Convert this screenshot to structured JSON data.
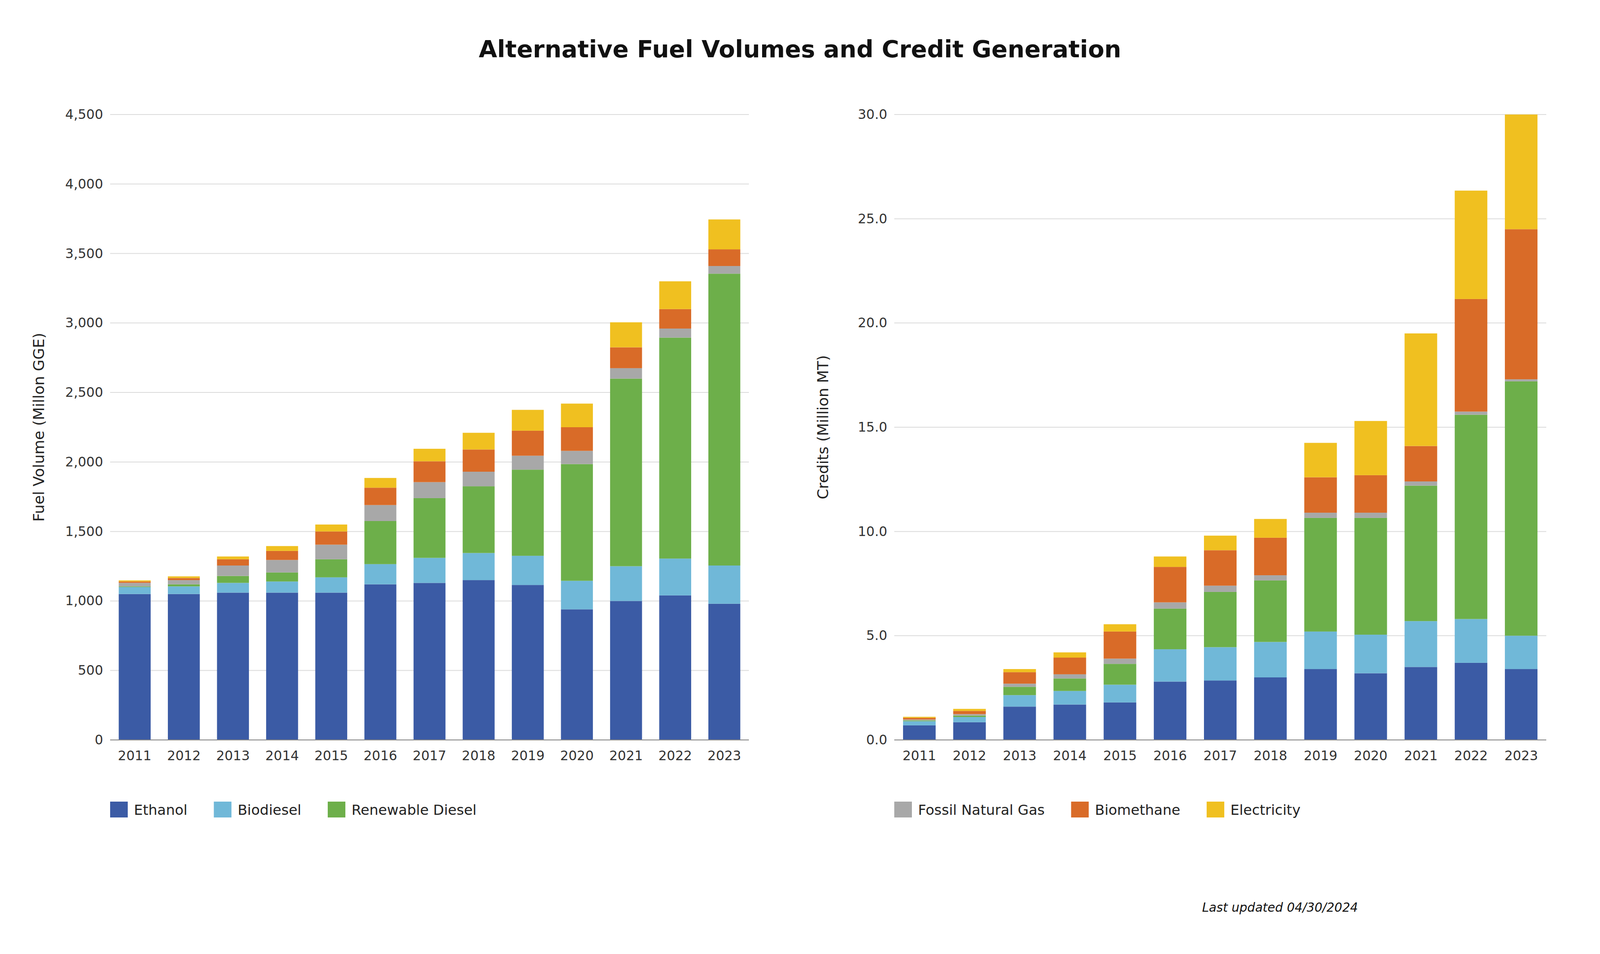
{
  "chart_data": [
    {
      "type": "bar",
      "stacked": true,
      "grid": true,
      "legend": "bottom",
      "title": "Alternative Fuel Volumes and Credit Generation",
      "y_label": "Fuel Volume (Millon GGE)",
      "categories": [
        "2011",
        "2012",
        "2013",
        "2014",
        "2015",
        "2016",
        "2017",
        "2018",
        "2019",
        "2020",
        "2021",
        "2022",
        "2023"
      ],
      "ylim": [
        0,
        4500
      ],
      "yticks": [
        0,
        500,
        {
          "value": 1000,
          "label": "1,000"
        },
        {
          "value": 1500,
          "label": "1,500"
        },
        {
          "value": 2000,
          "label": "2,000"
        },
        {
          "value": 2500,
          "label": "2,500"
        },
        {
          "value": 3000,
          "label": "3,000"
        },
        {
          "value": 3500,
          "label": "3,500"
        },
        {
          "value": 4000,
          "label": "4,000"
        },
        {
          "value": 4500,
          "label": "4,500"
        }
      ],
      "series": [
        {
          "name": "Ethanol",
          "color": "#3B5BA5",
          "values": [
            1050,
            1050,
            1060,
            1060,
            1060,
            1120,
            1130,
            1150,
            1115,
            940,
            1000,
            1040,
            980
          ]
        },
        {
          "name": "Biodiesel",
          "color": "#70B8D8",
          "values": [
            50,
            55,
            70,
            80,
            110,
            145,
            180,
            195,
            210,
            205,
            250,
            265,
            275
          ]
        },
        {
          "name": "Renewable Diesel",
          "color": "#6DAF4A",
          "values": [
            5,
            15,
            50,
            65,
            130,
            310,
            430,
            480,
            620,
            840,
            1350,
            1590,
            2100
          ]
        },
        {
          "name": "Fossil Natural Gas",
          "color": "#A8A8A8",
          "values": [
            25,
            30,
            75,
            90,
            105,
            115,
            115,
            105,
            100,
            95,
            75,
            65,
            55
          ]
        },
        {
          "name": "Biomethane",
          "color": "#D96B28",
          "values": [
            10,
            15,
            45,
            65,
            95,
            125,
            150,
            160,
            180,
            170,
            150,
            140,
            120
          ]
        },
        {
          "name": "Electricity",
          "color": "#F0C020",
          "values": [
            8,
            12,
            20,
            35,
            50,
            70,
            90,
            120,
            150,
            170,
            180,
            200,
            215
          ]
        }
      ]
    },
    {
      "type": "bar",
      "stacked": true,
      "grid": true,
      "legend": "bottom",
      "y_label": "Credits (Million  MT)",
      "annotations": [
        "Last updated 04/30/2024"
      ],
      "categories": [
        "2011",
        "2012",
        "2013",
        "2014",
        "2015",
        "2016",
        "2017",
        "2018",
        "2019",
        "2020",
        "2021",
        "2022",
        "2023"
      ],
      "ylim": [
        0,
        30
      ],
      "yticks": [
        {
          "value": 0,
          "label": "0.0"
        },
        {
          "value": 5,
          "label": "5.0"
        },
        {
          "value": 10,
          "label": "10.0"
        },
        {
          "value": 15,
          "label": "15.0"
        },
        {
          "value": 20,
          "label": "20.0"
        },
        {
          "value": 25,
          "label": "25.0"
        },
        {
          "value": 30,
          "label": "30.0"
        }
      ],
      "series": [
        {
          "name": "Ethanol",
          "color": "#3B5BA5",
          "values": [
            0.7,
            0.85,
            1.6,
            1.7,
            1.8,
            2.8,
            2.85,
            3.0,
            3.4,
            3.2,
            3.5,
            3.7,
            3.4
          ]
        },
        {
          "name": "Biodiesel",
          "color": "#70B8D8",
          "values": [
            0.2,
            0.25,
            0.55,
            0.65,
            0.85,
            1.55,
            1.6,
            1.7,
            1.8,
            1.85,
            2.2,
            2.1,
            1.6
          ]
        },
        {
          "name": "Renewable Diesel",
          "color": "#6DAF4A",
          "values": [
            0.04,
            0.07,
            0.4,
            0.6,
            1.0,
            1.95,
            2.65,
            2.95,
            5.45,
            5.6,
            6.5,
            9.8,
            12.2
          ]
        },
        {
          "name": "Fossil Natural Gas",
          "color": "#A8A8A8",
          "values": [
            0.04,
            0.07,
            0.15,
            0.2,
            0.25,
            0.3,
            0.3,
            0.25,
            0.25,
            0.25,
            0.2,
            0.15,
            0.1
          ]
        },
        {
          "name": "Biomethane",
          "color": "#D96B28",
          "values": [
            0.08,
            0.15,
            0.55,
            0.8,
            1.3,
            1.7,
            1.7,
            1.8,
            1.7,
            1.8,
            1.7,
            5.4,
            7.2
          ]
        },
        {
          "name": "Electricity",
          "color": "#F0C020",
          "values": [
            0.05,
            0.1,
            0.15,
            0.25,
            0.35,
            0.5,
            0.7,
            0.9,
            1.65,
            2.6,
            5.4,
            5.2,
            5.5
          ]
        }
      ]
    }
  ]
}
